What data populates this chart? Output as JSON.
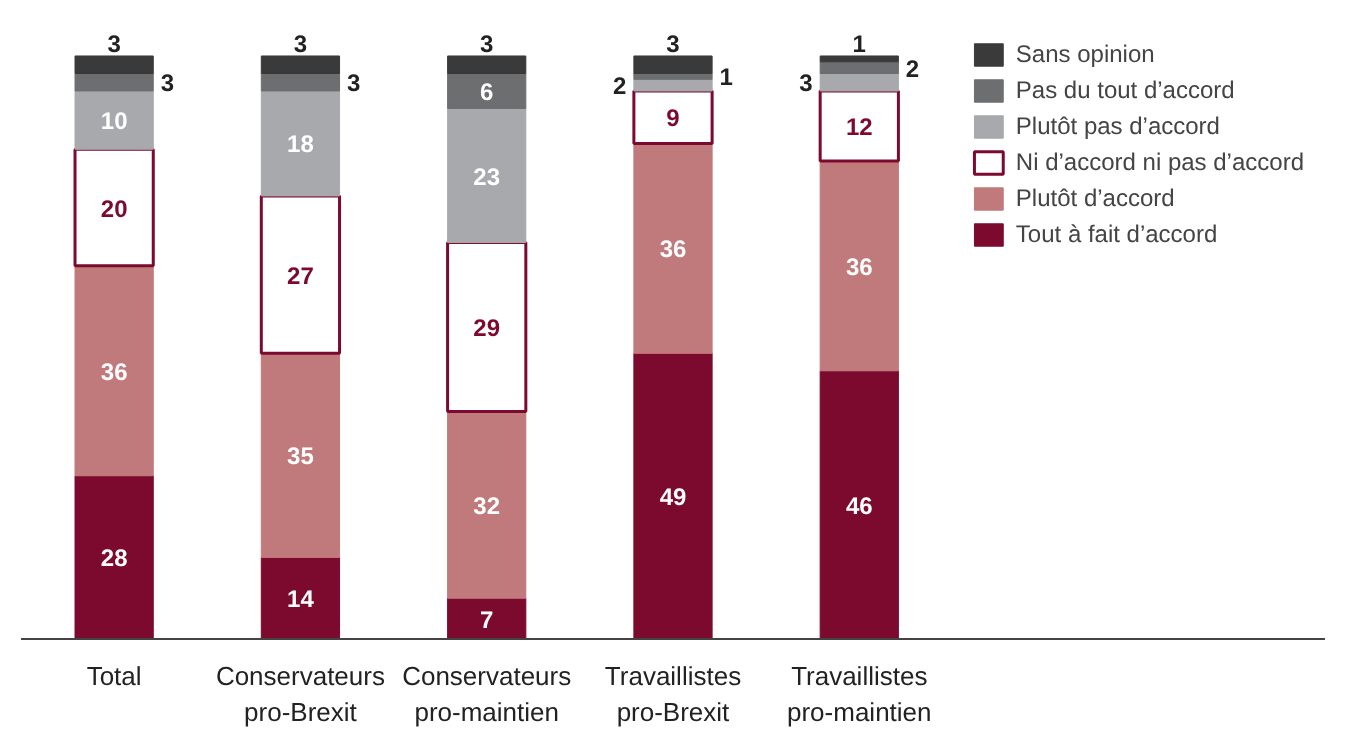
{
  "chart_data": {
    "type": "bar",
    "stacked": true,
    "data_labels": true,
    "legend": "right",
    "grid": false,
    "categories": [
      "Total",
      "Conservateurs pro-Brexit",
      "Conservateurs pro-maintien",
      "Travaillistes pro-Brexit",
      "Travaillistes pro-maintien"
    ],
    "series": [
      {
        "name": "Tout à fait d’accord",
        "color": "#7b0a2e",
        "values": [
          28,
          14,
          7,
          49,
          46
        ]
      },
      {
        "name": "Plutôt d’accord",
        "color": "#c17a7b",
        "values": [
          36,
          35,
          32,
          36,
          36
        ]
      },
      {
        "name": "Ni d’accord ni pas d’accord",
        "color": "#ffffff",
        "values": [
          20,
          27,
          29,
          9,
          12
        ]
      },
      {
        "name": "Plutôt pas d’accord",
        "color": "#a7a9ac",
        "values": [
          10,
          18,
          23,
          2,
          3
        ]
      },
      {
        "name": "Pas du tout d’accord",
        "color": "#6d6e70",
        "values": [
          3,
          3,
          6,
          1,
          2
        ]
      },
      {
        "name": "Sans opinion",
        "color": "#3a3a3a",
        "values": [
          3,
          3,
          3,
          3,
          1
        ]
      }
    ]
  }
}
